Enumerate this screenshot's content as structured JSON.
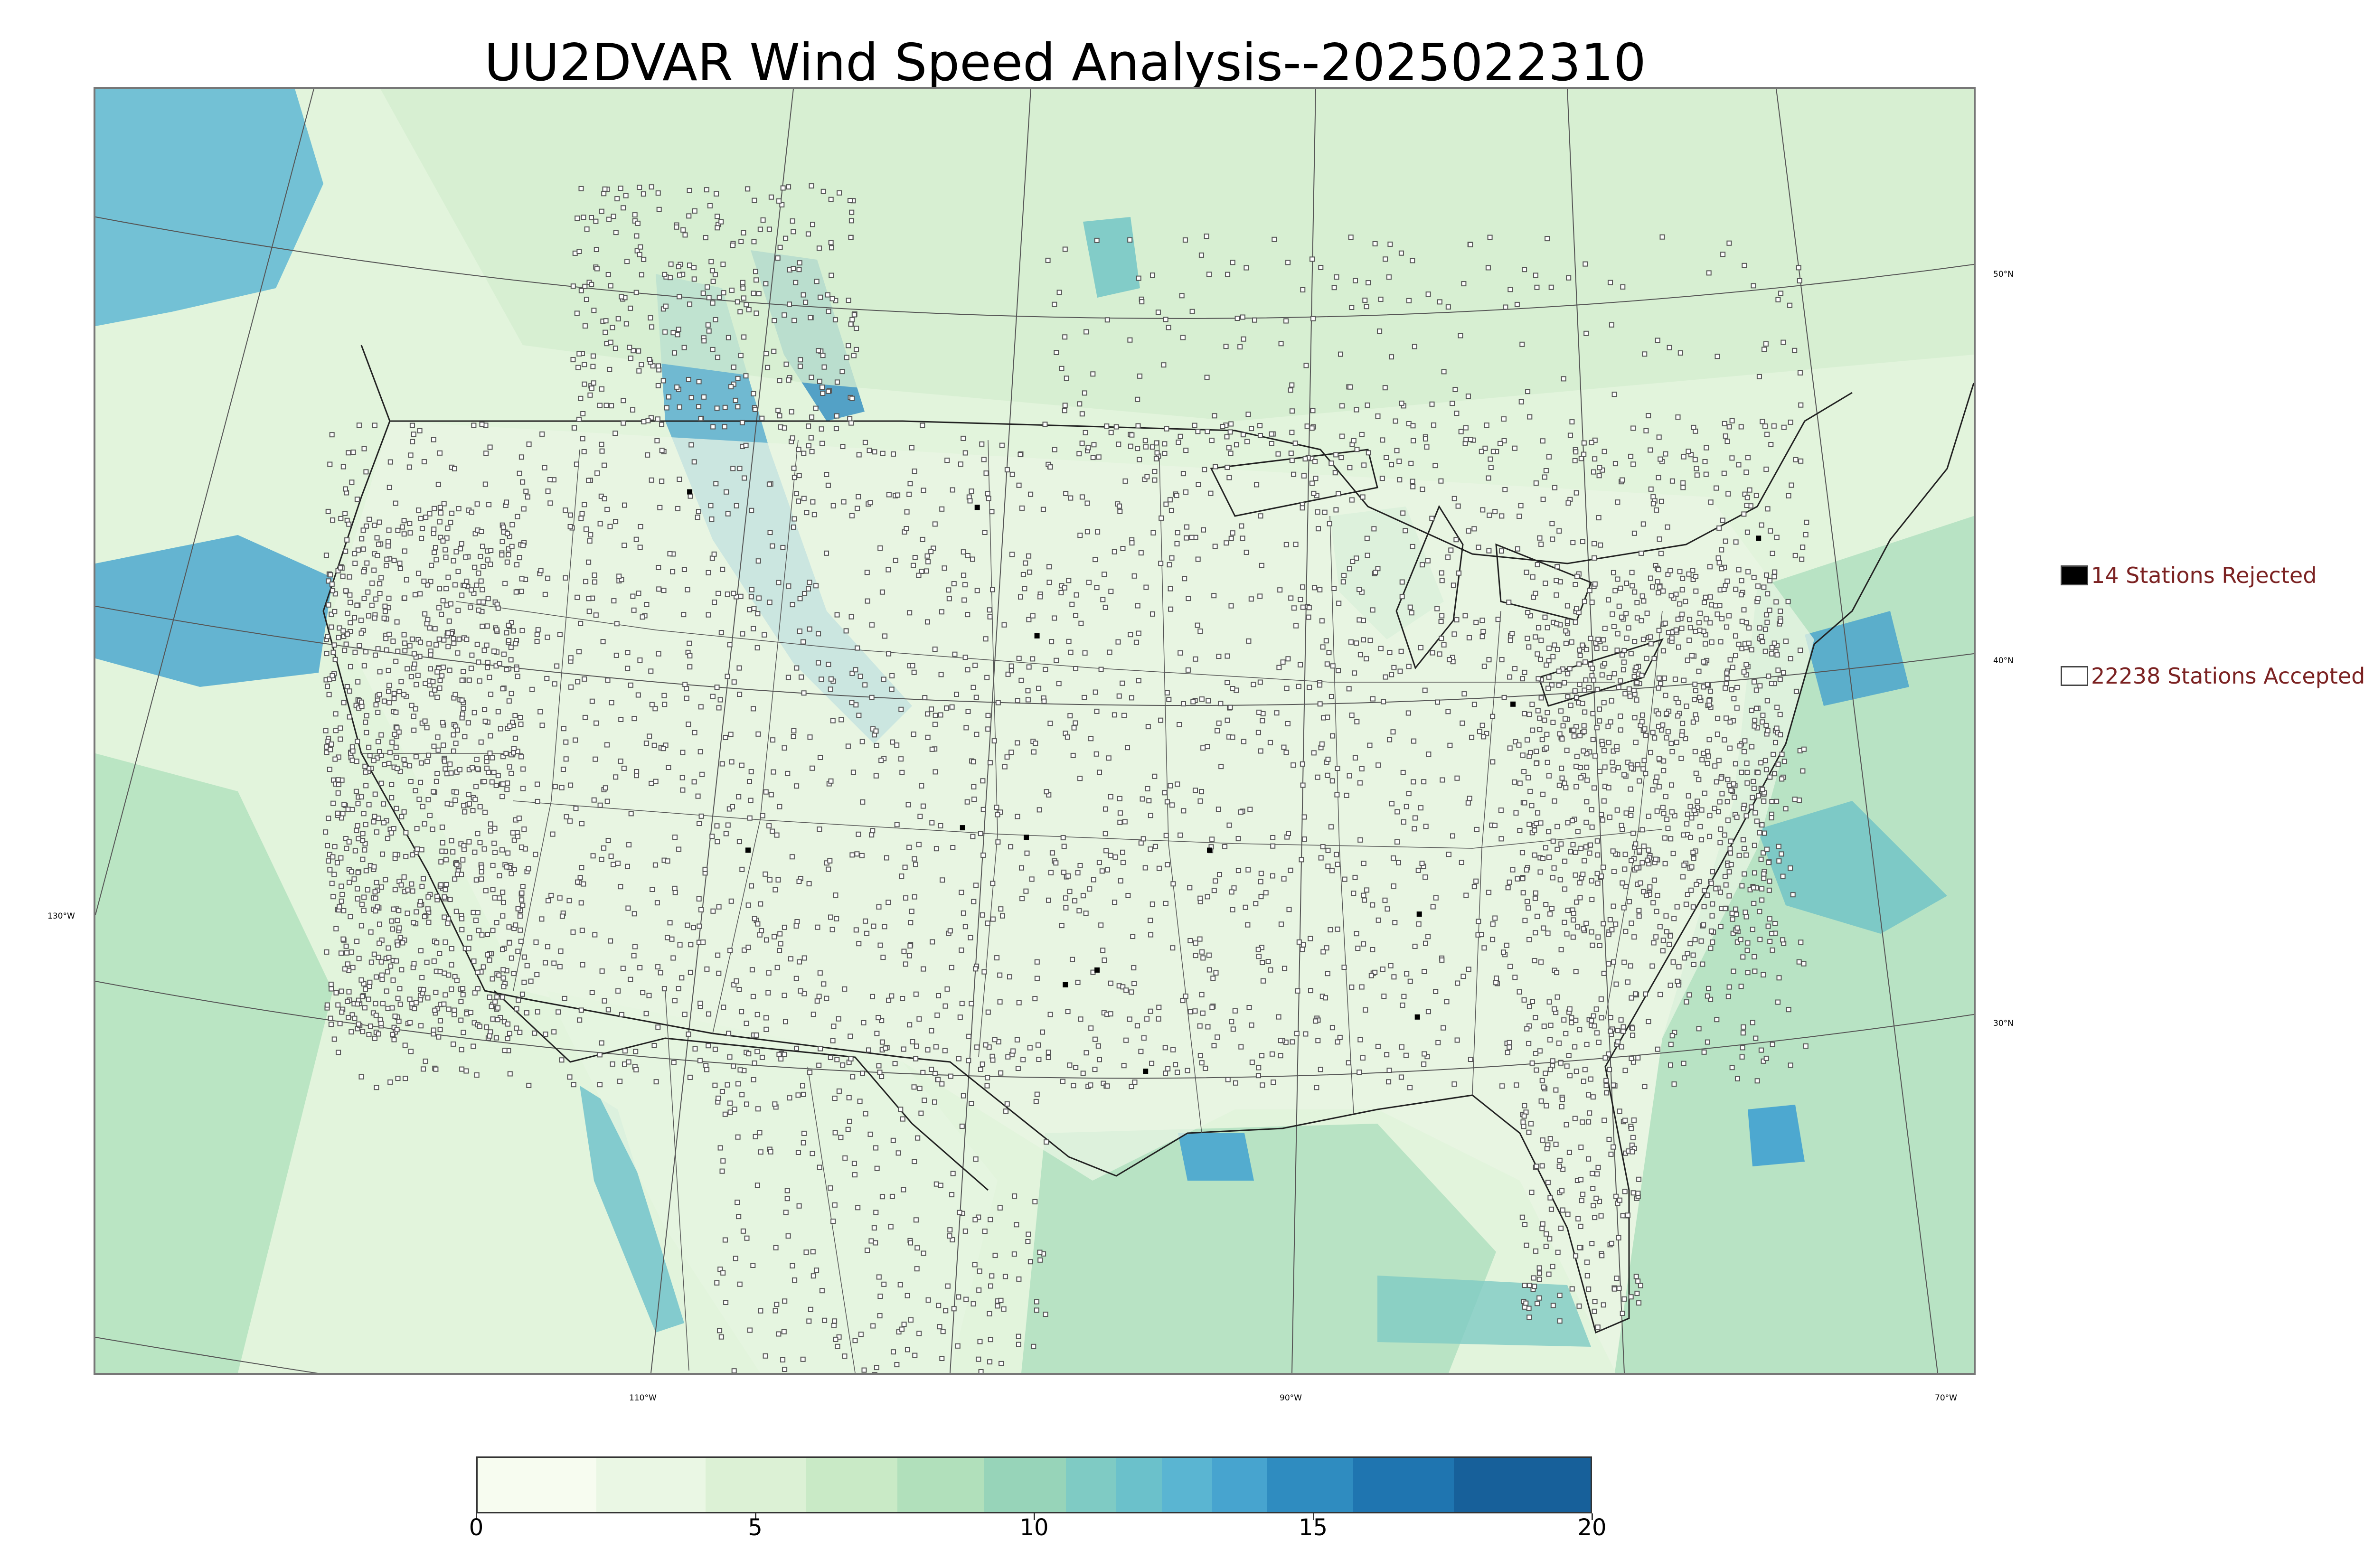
{
  "title": "UU2DVAR Wind Speed Analysis--2025022310",
  "map": {
    "lat_labels": [
      "50°N",
      "40°N",
      "30°N"
    ],
    "lon_labels": [
      "130°W",
      "110°W",
      "90°W",
      "70°W"
    ],
    "colors": {
      "land_background": "#e2f4dc",
      "light": "#f3fbee",
      "mid": "#a7dcb5",
      "high": "#3a9ed2",
      "max": "#1a5f93",
      "boundary": "#222222"
    }
  },
  "legend": {
    "rejected": {
      "label": "14 Stations Rejected",
      "count": 14,
      "color": "#000000"
    },
    "accepted": {
      "label": "22238 Stations Accepted",
      "count": 22238,
      "color": "#ffffff"
    }
  },
  "colorbar": {
    "min": 0,
    "max": 20,
    "ticks": [
      "0",
      "5",
      "10",
      "15",
      "20"
    ],
    "colors": [
      "#f7fcf0",
      "#eaf7e4",
      "#dcf1d5",
      "#c9eac6",
      "#b1e0bb",
      "#97d4b9",
      "#7fcbc4",
      "#6bc1cb",
      "#5ab5d2",
      "#47a4cf",
      "#2f8cc0",
      "#1f75b0",
      "#17609a"
    ]
  }
}
